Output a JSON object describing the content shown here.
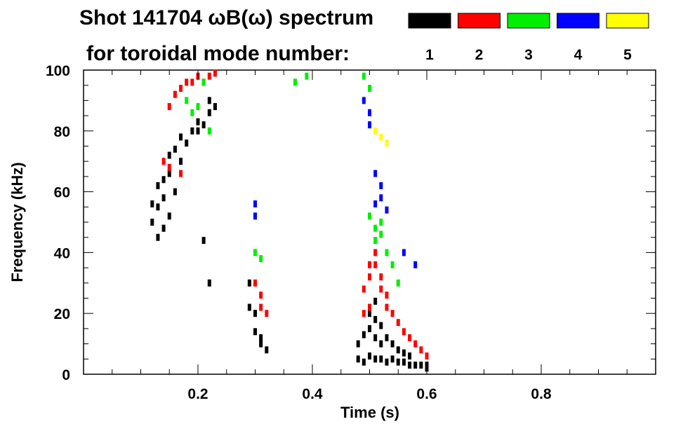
{
  "chart_data": {
    "type": "spectrogram",
    "title": "Shot 141704 ωB(ω) spectrum",
    "legend_title": "for toroidal mode number:",
    "xlabel": "Time (s)",
    "ylabel": "Frequency (kHz)",
    "xlim": [
      0.0,
      1.0
    ],
    "ylim": [
      0,
      100
    ],
    "x_ticks": [
      0.2,
      0.4,
      0.6,
      0.8
    ],
    "x_tick_labels": [
      "0.2",
      "0.4",
      "0.6",
      "0.8"
    ],
    "y_ticks": [
      0,
      20,
      40,
      60,
      80,
      100
    ],
    "y_tick_labels": [
      "0",
      "20",
      "40",
      "60",
      "80",
      "100"
    ],
    "legend": [
      {
        "mode": "1",
        "color": "#000000"
      },
      {
        "mode": "2",
        "color": "#ff0000"
      },
      {
        "mode": "3",
        "color": "#00ee00"
      },
      {
        "mode": "4",
        "color": "#0000ff"
      },
      {
        "mode": "5",
        "color": "#ffff00"
      }
    ],
    "series": [
      {
        "mode": 1,
        "color": "#000000",
        "points": [
          [
            0.12,
            50
          ],
          [
            0.12,
            56
          ],
          [
            0.13,
            45
          ],
          [
            0.13,
            55
          ],
          [
            0.13,
            62
          ],
          [
            0.14,
            48
          ],
          [
            0.14,
            58
          ],
          [
            0.14,
            64
          ],
          [
            0.15,
            52
          ],
          [
            0.15,
            66
          ],
          [
            0.15,
            72
          ],
          [
            0.16,
            60
          ],
          [
            0.16,
            74
          ],
          [
            0.17,
            70
          ],
          [
            0.17,
            78
          ],
          [
            0.18,
            76
          ],
          [
            0.19,
            80
          ],
          [
            0.2,
            80
          ],
          [
            0.2,
            83
          ],
          [
            0.21,
            82
          ],
          [
            0.22,
            86
          ],
          [
            0.22,
            90
          ],
          [
            0.23,
            88
          ],
          [
            0.21,
            44
          ],
          [
            0.22,
            30
          ],
          [
            0.29,
            30
          ],
          [
            0.29,
            22
          ],
          [
            0.3,
            20
          ],
          [
            0.3,
            14
          ],
          [
            0.31,
            12
          ],
          [
            0.31,
            10
          ],
          [
            0.32,
            8
          ],
          [
            0.48,
            5
          ],
          [
            0.48,
            10
          ],
          [
            0.49,
            4
          ],
          [
            0.49,
            13
          ],
          [
            0.5,
            6
          ],
          [
            0.5,
            15
          ],
          [
            0.5,
            20
          ],
          [
            0.51,
            5
          ],
          [
            0.51,
            12
          ],
          [
            0.51,
            18
          ],
          [
            0.51,
            24
          ],
          [
            0.52,
            5
          ],
          [
            0.52,
            10
          ],
          [
            0.52,
            16
          ],
          [
            0.53,
            4
          ],
          [
            0.53,
            12
          ],
          [
            0.54,
            5
          ],
          [
            0.54,
            10
          ],
          [
            0.55,
            4
          ],
          [
            0.55,
            8
          ],
          [
            0.56,
            4
          ],
          [
            0.56,
            7
          ],
          [
            0.57,
            3
          ],
          [
            0.57,
            6
          ],
          [
            0.58,
            3
          ],
          [
            0.59,
            3
          ],
          [
            0.6,
            2
          ],
          [
            0.6,
            3
          ]
        ]
      },
      {
        "mode": 2,
        "color": "#ff0000",
        "points": [
          [
            0.15,
            88
          ],
          [
            0.16,
            92
          ],
          [
            0.17,
            94
          ],
          [
            0.18,
            96
          ],
          [
            0.19,
            96
          ],
          [
            0.2,
            98
          ],
          [
            0.21,
            96
          ],
          [
            0.22,
            98
          ],
          [
            0.23,
            99
          ],
          [
            0.15,
            68
          ],
          [
            0.17,
            66
          ],
          [
            0.14,
            70
          ],
          [
            0.3,
            30
          ],
          [
            0.31,
            26
          ],
          [
            0.31,
            22
          ],
          [
            0.32,
            20
          ],
          [
            0.49,
            28
          ],
          [
            0.5,
            32
          ],
          [
            0.5,
            36
          ],
          [
            0.51,
            36
          ],
          [
            0.51,
            40
          ],
          [
            0.52,
            32
          ],
          [
            0.52,
            28
          ],
          [
            0.53,
            26
          ],
          [
            0.53,
            22
          ],
          [
            0.54,
            20
          ],
          [
            0.55,
            17
          ],
          [
            0.56,
            14
          ],
          [
            0.57,
            12
          ],
          [
            0.58,
            10
          ],
          [
            0.59,
            8
          ],
          [
            0.6,
            6
          ],
          [
            0.49,
            20
          ],
          [
            0.5,
            22
          ]
        ]
      },
      {
        "mode": 3,
        "color": "#00ee00",
        "points": [
          [
            0.18,
            90
          ],
          [
            0.19,
            86
          ],
          [
            0.2,
            88
          ],
          [
            0.21,
            96
          ],
          [
            0.22,
            80
          ],
          [
            0.37,
            96
          ],
          [
            0.39,
            98
          ],
          [
            0.3,
            40
          ],
          [
            0.31,
            38
          ],
          [
            0.5,
            52
          ],
          [
            0.51,
            48
          ],
          [
            0.51,
            44
          ],
          [
            0.52,
            50
          ],
          [
            0.52,
            46
          ],
          [
            0.53,
            40
          ],
          [
            0.54,
            36
          ],
          [
            0.55,
            30
          ],
          [
            0.49,
            98
          ],
          [
            0.5,
            94
          ]
        ]
      },
      {
        "mode": 4,
        "color": "#0000ff",
        "points": [
          [
            0.3,
            56
          ],
          [
            0.3,
            52
          ],
          [
            0.49,
            90
          ],
          [
            0.5,
            86
          ],
          [
            0.5,
            82
          ],
          [
            0.51,
            66
          ],
          [
            0.52,
            62
          ],
          [
            0.52,
            58
          ],
          [
            0.51,
            56
          ],
          [
            0.53,
            54
          ],
          [
            0.56,
            40
          ],
          [
            0.58,
            36
          ]
        ]
      },
      {
        "mode": 5,
        "color": "#ffff00",
        "points": [
          [
            0.51,
            80
          ],
          [
            0.52,
            78
          ],
          [
            0.53,
            76
          ]
        ]
      }
    ]
  }
}
